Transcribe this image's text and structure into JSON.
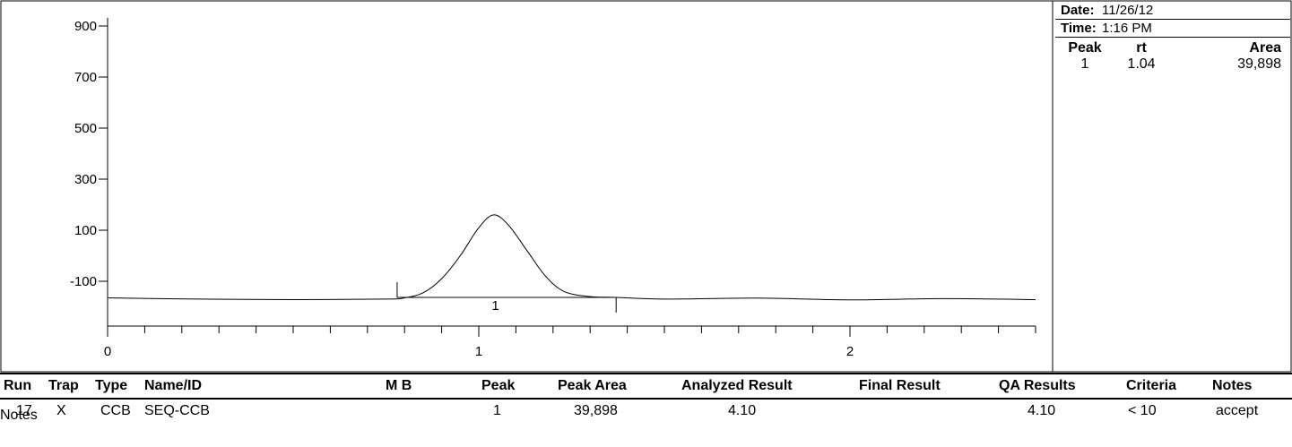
{
  "chart_data": {
    "type": "line",
    "title": "",
    "xlabel": "",
    "ylabel": "",
    "x_ticks": [
      "0",
      "1",
      "2"
    ],
    "y_ticks": [
      "900",
      "700",
      "500",
      "300",
      "100",
      "-100"
    ],
    "xlim": [
      0,
      2.5
    ],
    "ylim": [
      -260,
      900
    ],
    "grid": false,
    "series": [
      {
        "x": [
          0,
          0.25,
          0.5,
          0.75,
          0.8,
          0.85,
          0.9,
          0.95,
          1.0,
          1.04,
          1.08,
          1.13,
          1.18,
          1.23,
          1.3,
          1.37,
          1.5,
          1.75,
          2.0,
          2.25,
          2.5
        ],
        "y": [
          -165,
          -170,
          -172,
          -170,
          -165,
          -145,
          -90,
          0,
          110,
          160,
          120,
          20,
          -80,
          -140,
          -160,
          -163,
          -170,
          -166,
          -173,
          -168,
          -172
        ]
      }
    ],
    "baseline": {
      "x": [
        0.78,
        1.37
      ],
      "y": [
        -163,
        -163
      ]
    },
    "peak_markers": [
      {
        "label": "1",
        "x": 1.04,
        "y": -163
      }
    ]
  },
  "info": {
    "date_label": "Date:",
    "date_value": "11/26/12",
    "time_label": "Time:",
    "time_value": "1:16 PM",
    "peak_table": {
      "headers": [
        "Peak",
        "rt",
        "Area"
      ],
      "rows": [
        [
          "1",
          "1.04",
          "39,898"
        ]
      ]
    }
  },
  "results": {
    "headers": [
      "Run",
      "Trap",
      "Type",
      "Name/ID",
      "M B",
      "Peak",
      "Peak Area",
      "Analyzed Result",
      "Final Result",
      "QA Results",
      "Criteria",
      "Notes"
    ],
    "row": {
      "run": "17",
      "trap": "X",
      "type": "CCB",
      "name_id": "SEQ-CCB",
      "mb": "",
      "peak": "1",
      "peak_area": "39,898",
      "analyzed_result": "4.10",
      "final_result": "",
      "qa_results": "4.10",
      "criteria": "< 10",
      "notes": "accept"
    },
    "notes_label": "Notes"
  }
}
